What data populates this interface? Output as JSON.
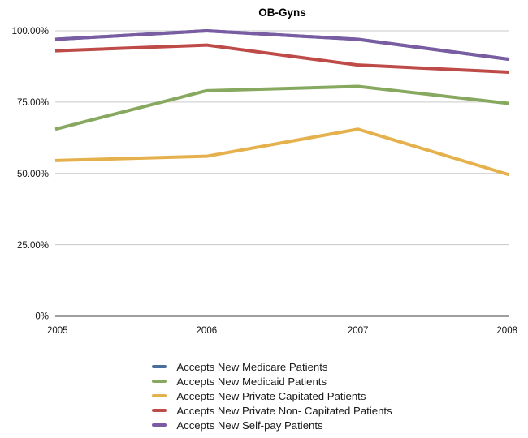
{
  "title": "OB-Gyns",
  "chart_data": {
    "type": "line",
    "title": "OB-Gyns",
    "x": [
      "2005",
      "2006",
      "2007",
      "2008"
    ],
    "series": [
      {
        "name": "Accepts New Medicare Patients",
        "color": "#4A6E9B",
        "values": [
          97,
          100,
          97,
          90
        ]
      },
      {
        "name": "Accepts New Medicaid Patients",
        "color": "#87A95F",
        "values": [
          65.5,
          79,
          80.5,
          74.5
        ]
      },
      {
        "name": "Accepts New Private Capitated Patients",
        "color": "#E5B14D",
        "values": [
          54.5,
          56,
          65.5,
          49.5
        ]
      },
      {
        "name": "Accepts New Private Non- Capitated Patients",
        "color": "#BE4B48",
        "values": [
          93,
          95,
          88,
          85.5
        ]
      },
      {
        "name": "Accepts New Self-pay Patients",
        "color": "#7A5CA3",
        "values": [
          97,
          100,
          97,
          90
        ]
      }
    ],
    "ytick_labels": [
      "100.00%",
      "75.00%",
      "50.00%",
      "25.00%",
      "0%"
    ],
    "ytick_values": [
      100,
      75,
      50,
      25,
      0
    ],
    "ylim": [
      0,
      100
    ],
    "grid": true,
    "legend_position": "bottom",
    "gridline_color": "#c9c9c9",
    "axis_color": "#3f3f3f",
    "tick_text_color": "#111111"
  }
}
